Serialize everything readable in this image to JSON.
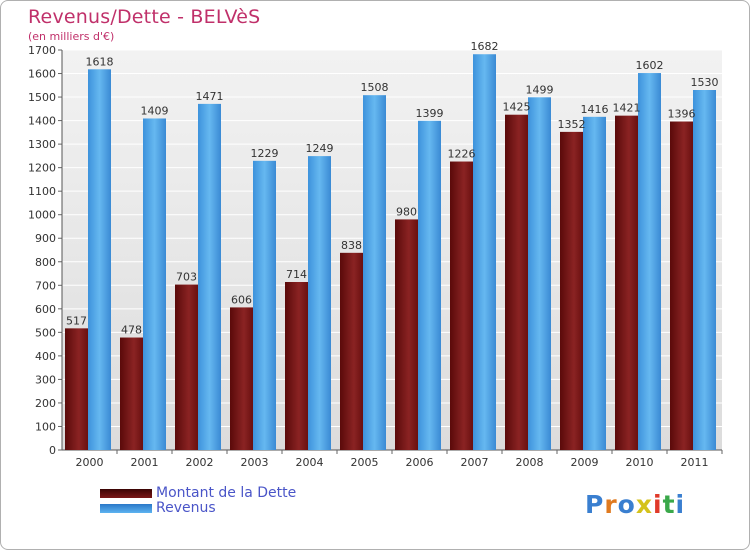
{
  "title": "Revenus/Dette - BELVèS",
  "subtitle": "(en milliers d'€)",
  "logo_text": "Proxiti",
  "colors": {
    "debt": "#7a1616",
    "revenue": "#4da6e8",
    "axis_text": "#333333",
    "grid": "#ffffff",
    "plot_bg": "#e6e6e6"
  },
  "legend": [
    {
      "name": "Montant de la Dette"
    },
    {
      "name": "Revenus"
    }
  ],
  "chart_data": {
    "type": "bar",
    "title": "Revenus/Dette - BELVèS",
    "subtitle": "(en milliers d'€)",
    "categories": [
      "2000",
      "2001",
      "2002",
      "2003",
      "2004",
      "2005",
      "2006",
      "2007",
      "2008",
      "2009",
      "2010",
      "2011"
    ],
    "series": [
      {
        "name": "Montant de la Dette",
        "values": [
          517,
          478,
          703,
          606,
          714,
          838,
          980,
          1226,
          1425,
          1352,
          1421,
          1396
        ]
      },
      {
        "name": "Revenus",
        "values": [
          1618,
          1409,
          1471,
          1229,
          1249,
          1508,
          1399,
          1682,
          1499,
          1416,
          1602,
          1530
        ]
      }
    ],
    "ylim": [
      0,
      1700
    ],
    "yticks": [
      0,
      100,
      200,
      300,
      400,
      500,
      600,
      700,
      800,
      900,
      1000,
      1100,
      1200,
      1300,
      1400,
      1500,
      1600,
      1700
    ],
    "grid": true,
    "legend_position": "bottom-left"
  }
}
